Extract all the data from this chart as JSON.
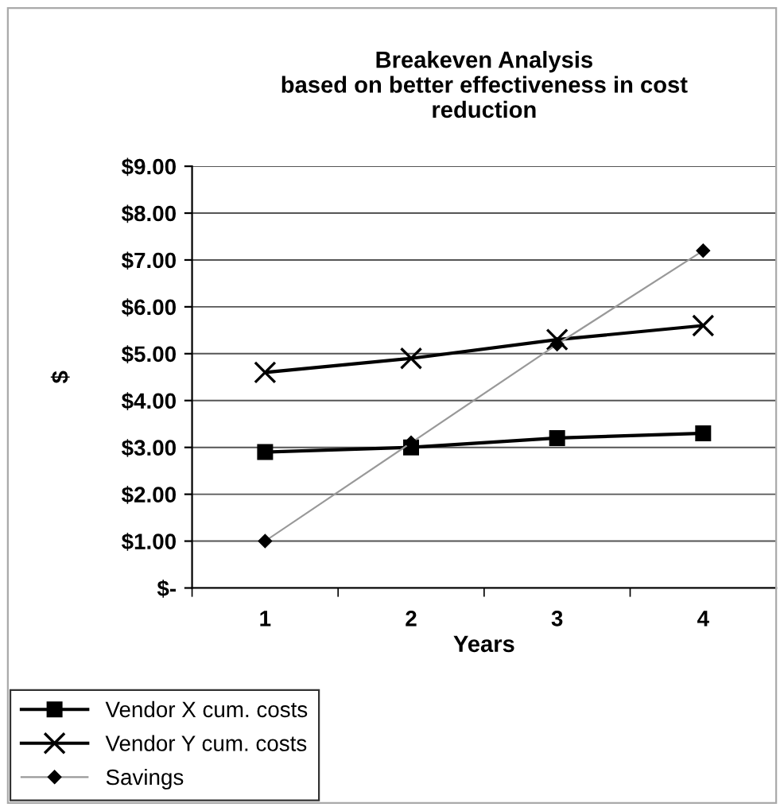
{
  "chart_data": {
    "type": "line",
    "title": "Breakeven Analysis\nbased on better effectiveness in cost\nreduction",
    "xlabel": "Years",
    "ylabel": "$",
    "categories": [
      "1",
      "2",
      "3",
      "4"
    ],
    "series": [
      {
        "name": "Vendor X cum. costs",
        "color": "#000000",
        "marker": "square",
        "values": [
          2.9,
          3.0,
          3.2,
          3.3
        ]
      },
      {
        "name": "Vendor Y cum. costs",
        "color": "#000000",
        "marker": "cross",
        "values": [
          4.6,
          4.9,
          5.3,
          5.6
        ]
      },
      {
        "name": "Savings",
        "color": "#999999",
        "marker": "diamond",
        "values": [
          1.0,
          3.1,
          5.2,
          7.2
        ]
      }
    ],
    "ylim": [
      0,
      9
    ],
    "yticks": [
      {
        "value": 0,
        "label": "$-"
      },
      {
        "value": 1,
        "label": "$1.00"
      },
      {
        "value": 2,
        "label": "$2.00"
      },
      {
        "value": 3,
        "label": "$3.00"
      },
      {
        "value": 4,
        "label": "$4.00"
      },
      {
        "value": 5,
        "label": "$5.00"
      },
      {
        "value": 6,
        "label": "$6.00"
      },
      {
        "value": 7,
        "label": "$7.00"
      },
      {
        "value": 8,
        "label": "$8.00"
      },
      {
        "value": 9,
        "label": "$9.00"
      }
    ],
    "grid": "y",
    "legend": "bottom left",
    "line_style": "solid"
  }
}
